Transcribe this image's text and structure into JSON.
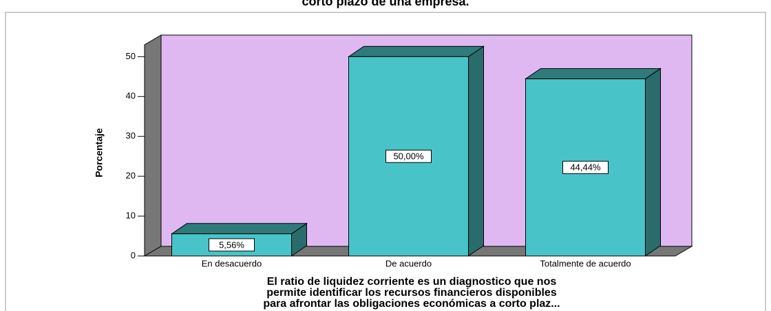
{
  "chart_data": {
    "type": "bar3d",
    "title": "corto plazo de una empresa.",
    "ylabel": "Porcentaje",
    "xlabel_lines": [
      "El ratio de liquidez corriente es un diagnostico que nos",
      "permite identificar los recursos financieros disponibles",
      "para afrontar las obligaciones económicas a corto plaz..."
    ],
    "categories": [
      "En desacuerdo",
      "De acuerdo",
      "Totalmente de acuerdo"
    ],
    "values": [
      5.56,
      50.0,
      44.44
    ],
    "value_labels": [
      "5,56%",
      "50,00%",
      "44,44%"
    ],
    "color": "#48c4c8",
    "ylim": [
      0,
      53
    ],
    "yticks": [
      0,
      10,
      20,
      30,
      40,
      50
    ]
  }
}
